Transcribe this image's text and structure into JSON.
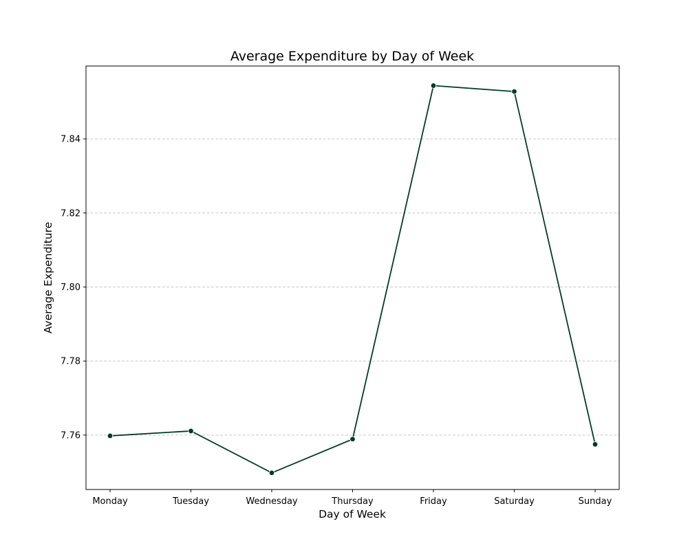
{
  "chart_data": {
    "type": "line",
    "title": "Average Expenditure by Day of Week",
    "xlabel": "Day of Week",
    "ylabel": "Average Expenditure",
    "categories": [
      "Monday",
      "Tuesday",
      "Wednesday",
      "Thursday",
      "Friday",
      "Saturday",
      "Sunday"
    ],
    "series": [
      {
        "values": [
          7.7598,
          7.7611,
          7.7498,
          7.7589,
          7.8544,
          7.8528,
          7.7575
        ],
        "color": "#023b25",
        "marker": "circle"
      }
    ],
    "ylim": [
      7.7453,
      7.8597
    ],
    "yticks": [
      7.76,
      7.78,
      7.8,
      7.82,
      7.84
    ],
    "ytick_labels": [
      "7.76",
      "7.78",
      "7.80",
      "7.82",
      "7.84"
    ],
    "grid": {
      "y": true,
      "x": false,
      "style": "dashed",
      "color": "#c8c8c8"
    },
    "legend": null
  }
}
